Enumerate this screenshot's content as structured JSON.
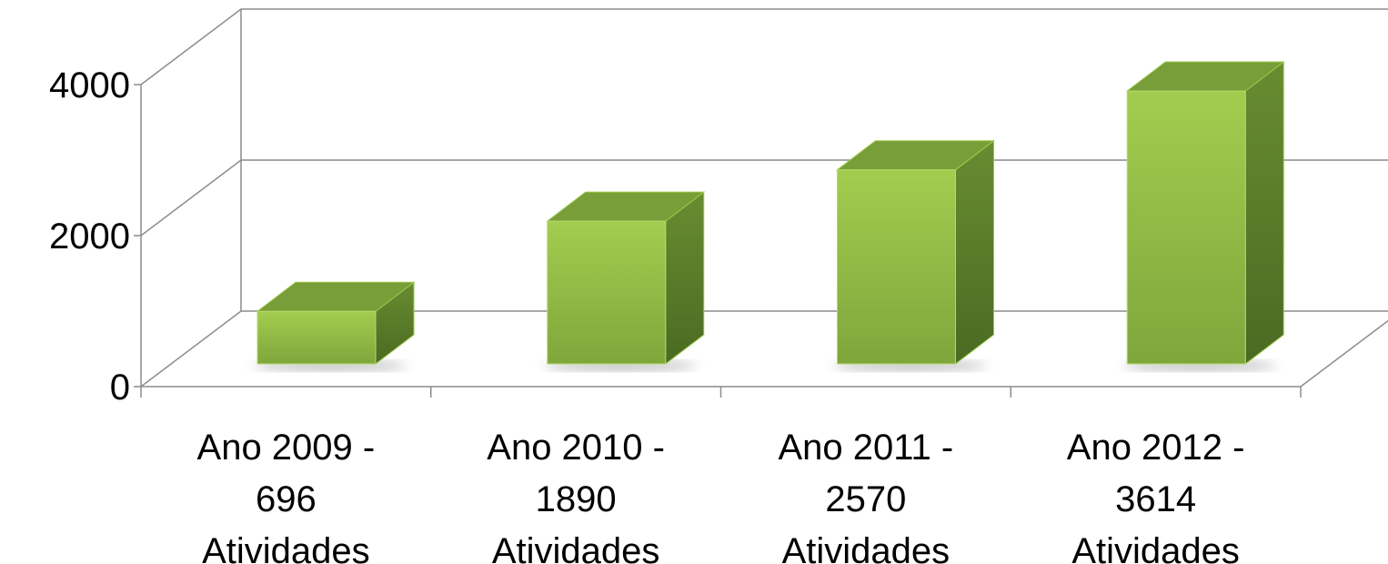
{
  "chart_data": {
    "type": "bar3d",
    "categories": [
      [
        "Ano 2009 -",
        "696",
        "Atividades"
      ],
      [
        "Ano 2010 -",
        "1890",
        "Atividades"
      ],
      [
        "Ano 2011 -",
        "2570",
        "Atividades"
      ],
      [
        "Ano 2012 -",
        "3614",
        "Atividades"
      ]
    ],
    "values": [
      696,
      1890,
      2570,
      3614
    ],
    "color": "#8fbc44",
    "ylim": [
      0,
      4000
    ],
    "yticks": [
      0,
      2000,
      4000
    ],
    "grid": true
  }
}
